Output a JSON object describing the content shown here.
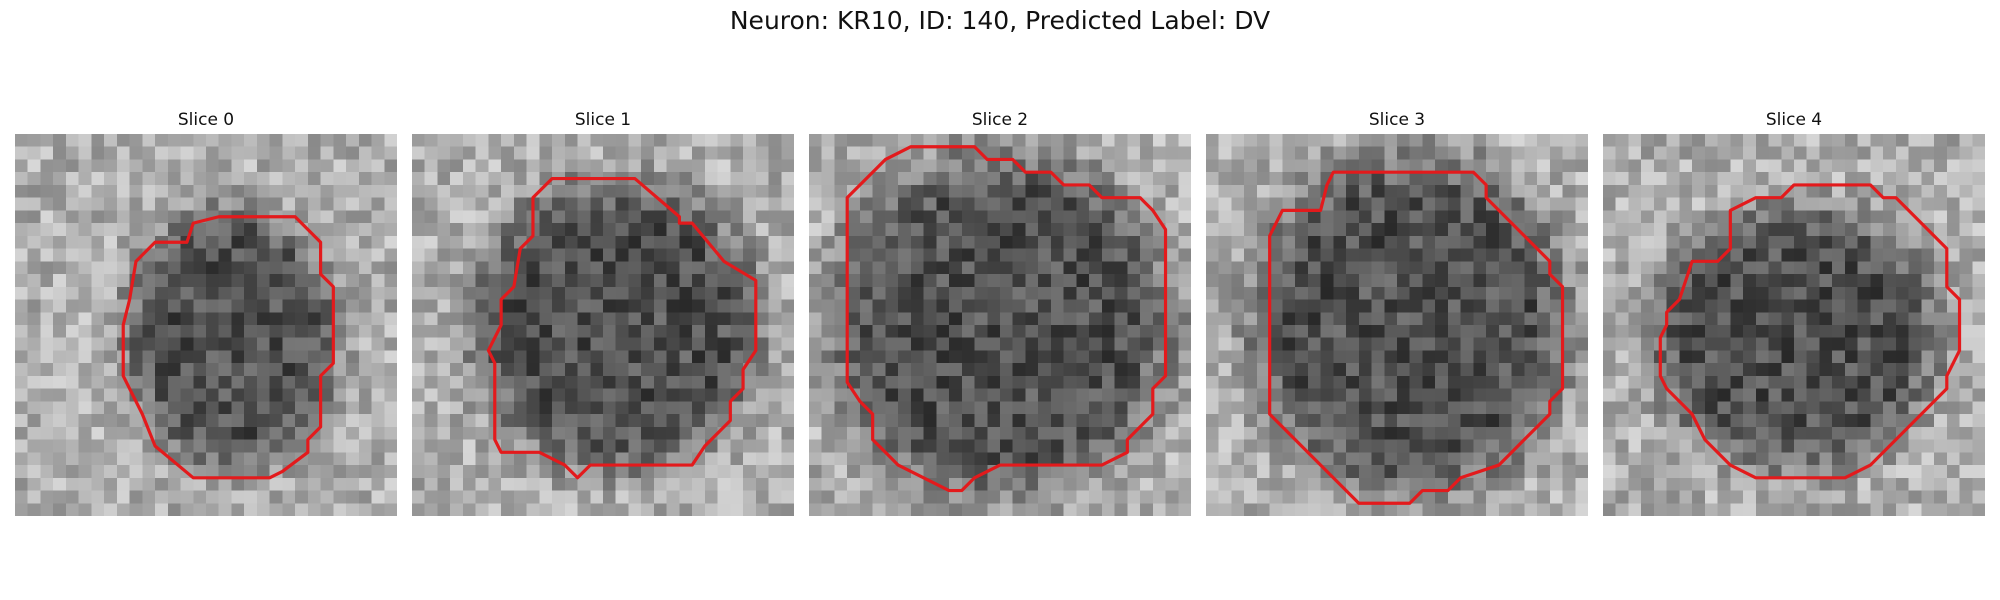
{
  "figure": {
    "title": "Neuron: KR10, ID: 140, Predicted Label: DV",
    "contour_color": "#e31a1c",
    "colormap": "gray",
    "grid_size": 30
  },
  "panels": [
    {
      "title": "Slice 0",
      "contour": [
        [
          13.5,
          8.5
        ],
        [
          14,
          7
        ],
        [
          16,
          6.5
        ],
        [
          22,
          6.5
        ],
        [
          24,
          8.5
        ],
        [
          24,
          11
        ],
        [
          25,
          12
        ],
        [
          25,
          18
        ],
        [
          24,
          19
        ],
        [
          24,
          23
        ],
        [
          23,
          24
        ],
        [
          23,
          25
        ],
        [
          21,
          26.5
        ],
        [
          20,
          27
        ],
        [
          14,
          27
        ],
        [
          11,
          24.5
        ],
        [
          10,
          22
        ],
        [
          9,
          20
        ],
        [
          8.5,
          19
        ],
        [
          8.5,
          15
        ],
        [
          9,
          13
        ],
        [
          9.5,
          10
        ],
        [
          11,
          8.5
        ]
      ],
      "dark_center": [
        17,
        16
      ],
      "dark_radius": [
        8,
        10
      ],
      "seed": 11
    },
    {
      "title": "Slice 1",
      "contour": [
        [
          9.5,
          5
        ],
        [
          11,
          3.5
        ],
        [
          17.5,
          3.5
        ],
        [
          21,
          6.5
        ],
        [
          21,
          7
        ],
        [
          22,
          7
        ],
        [
          24.5,
          10
        ],
        [
          27,
          11.5
        ],
        [
          27,
          17
        ],
        [
          26,
          18.5
        ],
        [
          26,
          20
        ],
        [
          25,
          21
        ],
        [
          25,
          22.5
        ],
        [
          24,
          23.5
        ],
        [
          23,
          24.5
        ],
        [
          22,
          26
        ],
        [
          14,
          26
        ],
        [
          13,
          27
        ],
        [
          12,
          26
        ],
        [
          10,
          25
        ],
        [
          7,
          25
        ],
        [
          6.5,
          24
        ],
        [
          6.5,
          18
        ],
        [
          6,
          17
        ],
        [
          7,
          15
        ],
        [
          7,
          13
        ],
        [
          8,
          12
        ],
        [
          8.5,
          9
        ],
        [
          9.5,
          8
        ]
      ],
      "dark_center": [
        16,
        15
      ],
      "dark_radius": [
        11,
        11
      ],
      "seed": 23
    },
    {
      "title": "Slice 2",
      "contour": [
        [
          6,
          2
        ],
        [
          8,
          1
        ],
        [
          13,
          1
        ],
        [
          14,
          2
        ],
        [
          16,
          2
        ],
        [
          17,
          3
        ],
        [
          19,
          3
        ],
        [
          20,
          4
        ],
        [
          22,
          4
        ],
        [
          23,
          5
        ],
        [
          26,
          5
        ],
        [
          27,
          6
        ],
        [
          28,
          7.5
        ],
        [
          28,
          19
        ],
        [
          27,
          20
        ],
        [
          27,
          22
        ],
        [
          26,
          23
        ],
        [
          25,
          24
        ],
        [
          25,
          25
        ],
        [
          23,
          26
        ],
        [
          15,
          26
        ],
        [
          13,
          27
        ],
        [
          12,
          28
        ],
        [
          11,
          28
        ],
        [
          9,
          27
        ],
        [
          7,
          26
        ],
        [
          5,
          24
        ],
        [
          5,
          22
        ],
        [
          4,
          21
        ],
        [
          3,
          19.5
        ],
        [
          3,
          19
        ],
        [
          3,
          5
        ],
        [
          5,
          3
        ]
      ],
      "dark_center": [
        15,
        15
      ],
      "dark_radius": [
        13,
        13
      ],
      "seed": 37
    },
    {
      "title": "Slice 3",
      "contour": [
        [
          9.5,
          4
        ],
        [
          10,
          3
        ],
        [
          21,
          3
        ],
        [
          22,
          4
        ],
        [
          22,
          5
        ],
        [
          23,
          6
        ],
        [
          25,
          8
        ],
        [
          27,
          10
        ],
        [
          27,
          11
        ],
        [
          28,
          12
        ],
        [
          28,
          20
        ],
        [
          27,
          21
        ],
        [
          27,
          22
        ],
        [
          26,
          23
        ],
        [
          24,
          25
        ],
        [
          23,
          26
        ],
        [
          20,
          27
        ],
        [
          19,
          28
        ],
        [
          17,
          28
        ],
        [
          16,
          29
        ],
        [
          12,
          29
        ],
        [
          5,
          22
        ],
        [
          5,
          8
        ],
        [
          6,
          6
        ],
        [
          9,
          6
        ]
      ],
      "dark_center": [
        16,
        15
      ],
      "dark_radius": [
        12,
        13
      ],
      "seed": 51
    },
    {
      "title": "Slice 4",
      "contour": [
        [
          10,
          6
        ],
        [
          12,
          5
        ],
        [
          14,
          5
        ],
        [
          15,
          4
        ],
        [
          21,
          4
        ],
        [
          22,
          5
        ],
        [
          23,
          5
        ],
        [
          25,
          7
        ],
        [
          26,
          8
        ],
        [
          27,
          9
        ],
        [
          27,
          12
        ],
        [
          28,
          13
        ],
        [
          28,
          17
        ],
        [
          27,
          19
        ],
        [
          27,
          20
        ],
        [
          26,
          21
        ],
        [
          25,
          22
        ],
        [
          24,
          23
        ],
        [
          23,
          24
        ],
        [
          21,
          26
        ],
        [
          19,
          27
        ],
        [
          12,
          27
        ],
        [
          10,
          26
        ],
        [
          8,
          24
        ],
        [
          7,
          22
        ],
        [
          6,
          21
        ],
        [
          5,
          20
        ],
        [
          4.5,
          19
        ],
        [
          4.5,
          16
        ],
        [
          5,
          15
        ],
        [
          5,
          14
        ],
        [
          6,
          13
        ],
        [
          7,
          10
        ],
        [
          7,
          10
        ],
        [
          9,
          10
        ],
        [
          10,
          9
        ],
        [
          10,
          7
        ]
      ],
      "dark_center": [
        15,
        16
      ],
      "dark_radius": [
        11,
        10
      ],
      "seed": 67
    }
  ]
}
